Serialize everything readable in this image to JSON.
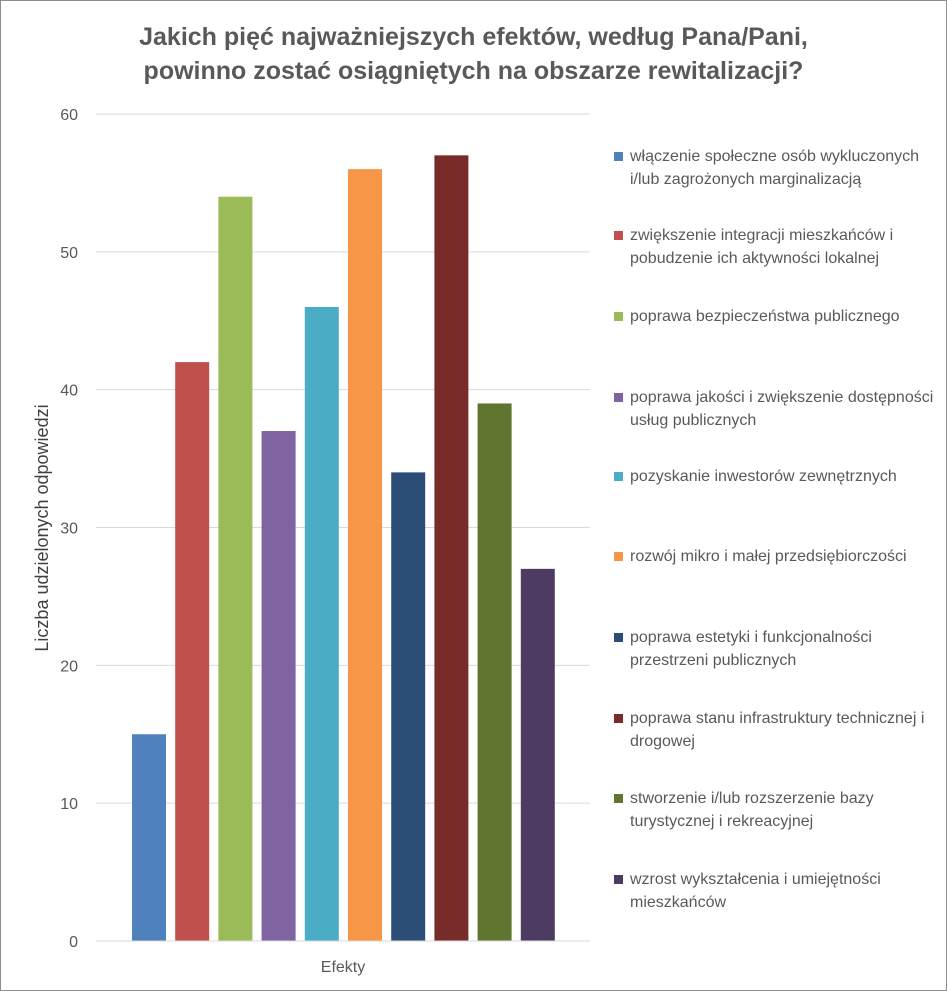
{
  "chart_data": {
    "type": "bar",
    "title": [
      "Jakich pięć najważniejszych efektów, według Pana/Pani,",
      "powinno zostać osiągniętych na obszarze rewitalizacji?"
    ],
    "xlabel": "Efekty",
    "ylabel": "Liczba udzielonych odpowiedzi",
    "ylim": [
      0,
      60
    ],
    "yticks": [
      0,
      10,
      20,
      30,
      40,
      50,
      60
    ],
    "grid": true,
    "legend_position": "right",
    "categories": [
      "włączenie społeczne osób wykluczonych i/lub zagrożonych marginalizacją",
      "zwiększenie integracji mieszkańców i pobudzenie ich aktywności lokalnej",
      "poprawa bezpieczeństwa publicznego",
      "poprawa jakości i zwiększenie dostępności usług publicznych",
      "pozyskanie inwestorów zewnętrznych",
      "rozwój mikro i małej przedsiębiorczości",
      "poprawa estetyki i funkcjonalności przestrzeni publicznych",
      "poprawa stanu infrastruktury technicznej i drogowej",
      "stworzenie i/lub rozszerzenie bazy turystycznej i rekreacyjnej",
      "wzrost wykształcenia i umiejętności mieszkańców"
    ],
    "values": [
      15,
      42,
      54,
      37,
      46,
      56,
      34,
      57,
      39,
      27
    ],
    "colors": [
      "#4f81bd",
      "#c0504d",
      "#9bbb59",
      "#8064a2",
      "#4bacc6",
      "#f79646",
      "#2c4d75",
      "#772c2a",
      "#5f7530",
      "#4d3b62"
    ]
  }
}
